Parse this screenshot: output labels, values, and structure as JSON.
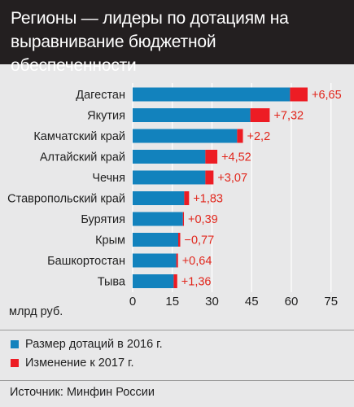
{
  "header": {
    "title_line1": "Регионы — лидеры по дотациям на",
    "title_line2": "выравнивание бюджетной обеспеченности"
  },
  "chart_data": {
    "type": "bar",
    "orientation": "horizontal",
    "stacked": true,
    "categories": [
      "Дагестан",
      "Якутия",
      "Камчатский край",
      "Алтайский край",
      "Чечня",
      "Ставропольский край",
      "Бурятия",
      "Крым",
      "Башкортостан",
      "Тыва"
    ],
    "series": [
      {
        "name": "Размер дотаций в 2016 г.",
        "color": "#1282bd",
        "values": [
          59.5,
          44.5,
          39.5,
          27.5,
          27.5,
          19.5,
          19.0,
          18.0,
          16.5,
          15.5
        ]
      },
      {
        "name": "Изменение к 2017 г.",
        "color": "#ed1c24",
        "values": [
          6.65,
          7.32,
          2.2,
          4.52,
          3.07,
          1.83,
          0.39,
          -0.77,
          0.64,
          1.36
        ]
      }
    ],
    "change_labels": [
      "+6,65",
      "+7,32",
      "+2,2",
      "+4,52",
      "+3,07",
      "+1,83",
      "+0,39",
      "−0,77",
      "+0,64",
      "+1,36"
    ],
    "xticks": [
      0,
      15,
      30,
      45,
      60,
      75
    ],
    "xlim": [
      0,
      75
    ],
    "xlabel": "млрд руб.",
    "grid": true,
    "legend_position": "bottom-left"
  },
  "legend": [
    {
      "label": "Размер дотаций в 2016 г.",
      "color": "#1282bd"
    },
    {
      "label": "Изменение к 2017 г.",
      "color": "#ed1c24"
    }
  ],
  "source": "Источник: Минфин России"
}
